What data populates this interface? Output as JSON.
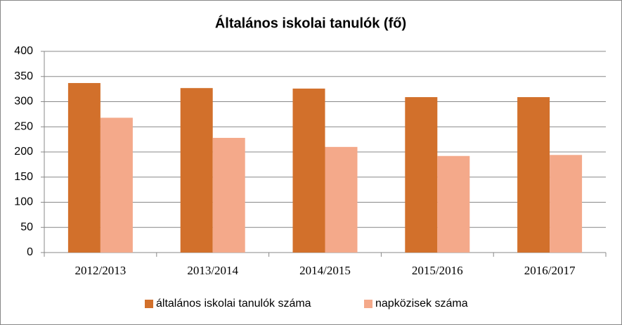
{
  "chart_data": {
    "type": "bar",
    "title": "Általános iskolai tanulók (fő)",
    "categories": [
      "2012/2013",
      "2013/2014",
      "2014/2015",
      "2015/2016",
      "2016/2017"
    ],
    "series": [
      {
        "name": "általános iskolai tanulók száma",
        "color": "#d2702b",
        "values": [
          337,
          327,
          326,
          309,
          309
        ]
      },
      {
        "name": "napközisek száma",
        "color": "#f4a98a",
        "values": [
          268,
          228,
          210,
          192,
          194
        ]
      }
    ],
    "ylim": [
      0,
      400
    ],
    "yticks": [
      0,
      50,
      100,
      150,
      200,
      250,
      300,
      350,
      400
    ],
    "grid": true,
    "legend": "bottom"
  }
}
